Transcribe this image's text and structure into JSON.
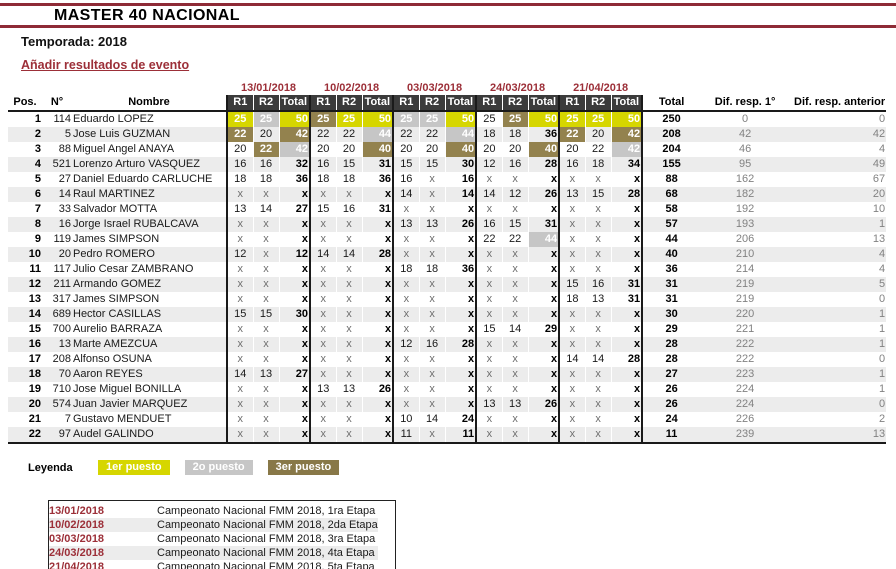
{
  "page": {
    "title": "MASTER 40 NACIONAL",
    "season": "Temporada: 2018",
    "add_event_link": "Añadir resultados de evento"
  },
  "colors": {
    "rule_red": "#8e2a36",
    "link_red": "#9c2f38",
    "header_bg": "#3b3b3b",
    "row_stripe": "#ececec",
    "first_place": "#d6d600",
    "second_place": "#c6c6c6",
    "third_place": "#93824e"
  },
  "table": {
    "event_dates": [
      "13/01/2018",
      "10/02/2018",
      "03/03/2018",
      "24/03/2018",
      "21/04/2018"
    ],
    "headers": {
      "pos": "Pos.",
      "num": "N°",
      "name": "Nombre",
      "r1": "R1",
      "r2": "R2",
      "event_total": "Total",
      "total": "Total",
      "dif_first": "Dif. resp. 1°",
      "dif_prev": "Dif. resp. anterior"
    },
    "rows": [
      {
        "pos": "1",
        "num": "114",
        "name": "Eduardo LOPEZ",
        "events": [
          [
            "25*1",
            "25*2",
            "50*1"
          ],
          [
            "25*3",
            "25*1",
            "50*1"
          ],
          [
            "25*2",
            "25*2",
            "50*1"
          ],
          [
            "25",
            "25*3",
            "50*1"
          ],
          [
            "25*1",
            "25*1",
            "50*1"
          ]
        ],
        "total": "250",
        "dif_first": "0",
        "dif_prev": "0"
      },
      {
        "pos": "2",
        "num": "5",
        "name": "Jose Luis GUZMAN",
        "events": [
          [
            "22*3",
            "20",
            "42*3"
          ],
          [
            "22",
            "22",
            "44*2"
          ],
          [
            "22",
            "22",
            "44*2"
          ],
          [
            "18",
            "18",
            "36"
          ],
          [
            "22*3",
            "20",
            "42*3"
          ]
        ],
        "total": "208",
        "dif_first": "42",
        "dif_prev": "42"
      },
      {
        "pos": "3",
        "num": "88",
        "name": "Miguel Angel ANAYA",
        "events": [
          [
            "20",
            "22*3",
            "42*2"
          ],
          [
            "20",
            "20",
            "40*3"
          ],
          [
            "20",
            "20",
            "40*3"
          ],
          [
            "20",
            "20",
            "40*3"
          ],
          [
            "20",
            "22",
            "42*2"
          ]
        ],
        "total": "204",
        "dif_first": "46",
        "dif_prev": "4"
      },
      {
        "pos": "4",
        "num": "521",
        "name": "Lorenzo Arturo VASQUEZ",
        "events": [
          [
            "16",
            "16",
            "32"
          ],
          [
            "16",
            "15",
            "31"
          ],
          [
            "15",
            "15",
            "30"
          ],
          [
            "12",
            "16",
            "28"
          ],
          [
            "16",
            "18",
            "34"
          ]
        ],
        "total": "155",
        "dif_first": "95",
        "dif_prev": "49"
      },
      {
        "pos": "5",
        "num": "27",
        "name": "Daniel Eduardo CARLUCHE",
        "events": [
          [
            "18",
            "18",
            "36"
          ],
          [
            "18",
            "18",
            "36"
          ],
          [
            "16",
            "x",
            "16"
          ],
          [
            "x",
            "x",
            "x"
          ],
          [
            "x",
            "x",
            "x"
          ]
        ],
        "total": "88",
        "dif_first": "162",
        "dif_prev": "67"
      },
      {
        "pos": "6",
        "num": "14",
        "name": "Raul MARTINEZ",
        "events": [
          [
            "x",
            "x",
            "x"
          ],
          [
            "x",
            "x",
            "x"
          ],
          [
            "14",
            "x",
            "14"
          ],
          [
            "14",
            "12",
            "26"
          ],
          [
            "13",
            "15",
            "28"
          ]
        ],
        "total": "68",
        "dif_first": "182",
        "dif_prev": "20"
      },
      {
        "pos": "7",
        "num": "33",
        "name": "Salvador MOTTA",
        "events": [
          [
            "13",
            "14",
            "27"
          ],
          [
            "15",
            "16",
            "31"
          ],
          [
            "x",
            "x",
            "x"
          ],
          [
            "x",
            "x",
            "x"
          ],
          [
            "x",
            "x",
            "x"
          ]
        ],
        "total": "58",
        "dif_first": "192",
        "dif_prev": "10"
      },
      {
        "pos": "8",
        "num": "16",
        "name": "Jorge Israel RUBALCAVA",
        "events": [
          [
            "x",
            "x",
            "x"
          ],
          [
            "x",
            "x",
            "x"
          ],
          [
            "13",
            "13",
            "26"
          ],
          [
            "16",
            "15",
            "31"
          ],
          [
            "x",
            "x",
            "x"
          ]
        ],
        "total": "57",
        "dif_first": "193",
        "dif_prev": "1"
      },
      {
        "pos": "9",
        "num": "119",
        "name": "James SIMPSON",
        "events": [
          [
            "x",
            "x",
            "x"
          ],
          [
            "x",
            "x",
            "x"
          ],
          [
            "x",
            "x",
            "x"
          ],
          [
            "22",
            "22",
            "44*2"
          ],
          [
            "x",
            "x",
            "x"
          ]
        ],
        "total": "44",
        "dif_first": "206",
        "dif_prev": "13"
      },
      {
        "pos": "10",
        "num": "20",
        "name": "Pedro ROMERO",
        "events": [
          [
            "12",
            "x",
            "12"
          ],
          [
            "14",
            "14",
            "28"
          ],
          [
            "x",
            "x",
            "x"
          ],
          [
            "x",
            "x",
            "x"
          ],
          [
            "x",
            "x",
            "x"
          ]
        ],
        "total": "40",
        "dif_first": "210",
        "dif_prev": "4"
      },
      {
        "pos": "11",
        "num": "117",
        "name": "Julio Cesar ZAMBRANO",
        "events": [
          [
            "x",
            "x",
            "x"
          ],
          [
            "x",
            "x",
            "x"
          ],
          [
            "18",
            "18",
            "36"
          ],
          [
            "x",
            "x",
            "x"
          ],
          [
            "x",
            "x",
            "x"
          ]
        ],
        "total": "36",
        "dif_first": "214",
        "dif_prev": "4"
      },
      {
        "pos": "12",
        "num": "211",
        "name": "Armando GOMEZ",
        "events": [
          [
            "x",
            "x",
            "x"
          ],
          [
            "x",
            "x",
            "x"
          ],
          [
            "x",
            "x",
            "x"
          ],
          [
            "x",
            "x",
            "x"
          ],
          [
            "15",
            "16",
            "31"
          ]
        ],
        "total": "31",
        "dif_first": "219",
        "dif_prev": "5"
      },
      {
        "pos": "13",
        "num": "317",
        "name": "James SIMPSON",
        "events": [
          [
            "x",
            "x",
            "x"
          ],
          [
            "x",
            "x",
            "x"
          ],
          [
            "x",
            "x",
            "x"
          ],
          [
            "x",
            "x",
            "x"
          ],
          [
            "18",
            "13",
            "31"
          ]
        ],
        "total": "31",
        "dif_first": "219",
        "dif_prev": "0"
      },
      {
        "pos": "14",
        "num": "689",
        "name": "Hector CASILLAS",
        "events": [
          [
            "15",
            "15",
            "30"
          ],
          [
            "x",
            "x",
            "x"
          ],
          [
            "x",
            "x",
            "x"
          ],
          [
            "x",
            "x",
            "x"
          ],
          [
            "x",
            "x",
            "x"
          ]
        ],
        "total": "30",
        "dif_first": "220",
        "dif_prev": "1"
      },
      {
        "pos": "15",
        "num": "700",
        "name": "Aurelio BARRAZA",
        "events": [
          [
            "x",
            "x",
            "x"
          ],
          [
            "x",
            "x",
            "x"
          ],
          [
            "x",
            "x",
            "x"
          ],
          [
            "15",
            "14",
            "29"
          ],
          [
            "x",
            "x",
            "x"
          ]
        ],
        "total": "29",
        "dif_first": "221",
        "dif_prev": "1"
      },
      {
        "pos": "16",
        "num": "13",
        "name": "Marte AMEZCUA",
        "events": [
          [
            "x",
            "x",
            "x"
          ],
          [
            "x",
            "x",
            "x"
          ],
          [
            "12",
            "16",
            "28"
          ],
          [
            "x",
            "x",
            "x"
          ],
          [
            "x",
            "x",
            "x"
          ]
        ],
        "total": "28",
        "dif_first": "222",
        "dif_prev": "1"
      },
      {
        "pos": "17",
        "num": "208",
        "name": "Alfonso OSUNA",
        "events": [
          [
            "x",
            "x",
            "x"
          ],
          [
            "x",
            "x",
            "x"
          ],
          [
            "x",
            "x",
            "x"
          ],
          [
            "x",
            "x",
            "x"
          ],
          [
            "14",
            "14",
            "28"
          ]
        ],
        "total": "28",
        "dif_first": "222",
        "dif_prev": "0"
      },
      {
        "pos": "18",
        "num": "70",
        "name": "Aaron REYES",
        "events": [
          [
            "14",
            "13",
            "27"
          ],
          [
            "x",
            "x",
            "x"
          ],
          [
            "x",
            "x",
            "x"
          ],
          [
            "x",
            "x",
            "x"
          ],
          [
            "x",
            "x",
            "x"
          ]
        ],
        "total": "27",
        "dif_first": "223",
        "dif_prev": "1"
      },
      {
        "pos": "19",
        "num": "710",
        "name": "Jose Miguel BONILLA",
        "events": [
          [
            "x",
            "x",
            "x"
          ],
          [
            "13",
            "13",
            "26"
          ],
          [
            "x",
            "x",
            "x"
          ],
          [
            "x",
            "x",
            "x"
          ],
          [
            "x",
            "x",
            "x"
          ]
        ],
        "total": "26",
        "dif_first": "224",
        "dif_prev": "1"
      },
      {
        "pos": "20",
        "num": "574",
        "name": "Juan Javier MARQUEZ",
        "events": [
          [
            "x",
            "x",
            "x"
          ],
          [
            "x",
            "x",
            "x"
          ],
          [
            "x",
            "x",
            "x"
          ],
          [
            "13",
            "13",
            "26"
          ],
          [
            "x",
            "x",
            "x"
          ]
        ],
        "total": "26",
        "dif_first": "224",
        "dif_prev": "0"
      },
      {
        "pos": "21",
        "num": "7",
        "name": "Gustavo MENDUET",
        "events": [
          [
            "x",
            "x",
            "x"
          ],
          [
            "x",
            "x",
            "x"
          ],
          [
            "10",
            "14",
            "24"
          ],
          [
            "x",
            "x",
            "x"
          ],
          [
            "x",
            "x",
            "x"
          ]
        ],
        "total": "24",
        "dif_first": "226",
        "dif_prev": "2"
      },
      {
        "pos": "22",
        "num": "97",
        "name": "Audel GALINDO",
        "events": [
          [
            "x",
            "x",
            "x"
          ],
          [
            "x",
            "x",
            "x"
          ],
          [
            "11",
            "x",
            "11"
          ],
          [
            "x",
            "x",
            "x"
          ],
          [
            "x",
            "x",
            "x"
          ]
        ],
        "total": "11",
        "dif_first": "239",
        "dif_prev": "13"
      }
    ]
  },
  "legend": {
    "title": "Leyenda",
    "items": [
      {
        "label": "1er puesto",
        "rank": 1
      },
      {
        "label": "2o puesto",
        "rank": 2
      },
      {
        "label": "3er puesto",
        "rank": 3
      }
    ]
  },
  "events": [
    {
      "date": "13/01/2018",
      "name": "Campeonato Nacional FMM 2018, 1ra Etapa"
    },
    {
      "date": "10/02/2018",
      "name": "Campeonato Nacional FMM 2018, 2da Etapa"
    },
    {
      "date": "03/03/2018",
      "name": "Campeonato Nacional FMM 2018, 3ra Etapa"
    },
    {
      "date": "24/03/2018",
      "name": "Campeonato Nacional FMM 2018, 4ta Etapa"
    },
    {
      "date": "21/04/2018",
      "name": "Campeonato Nacional FMM 2018, 5ta Etapa"
    }
  ]
}
